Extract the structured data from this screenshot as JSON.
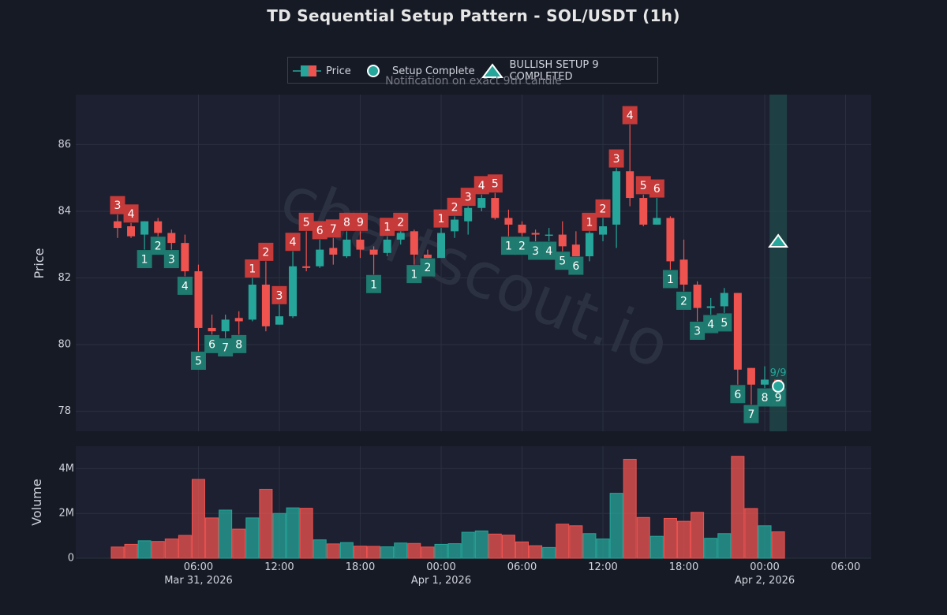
{
  "title": "TD Sequential Setup Pattern - SOL/USDT (1h)",
  "legend": {
    "price": "Price",
    "setup_complete": "Setup Complete",
    "bullish_setup": "BULLISH SETUP 9 COMPLETED",
    "note": "Notification on exact 9th candle"
  },
  "watermark": "chartscout.io",
  "colors": {
    "background": "#161a25",
    "panel": "#1c2030",
    "grid": "#2c3140",
    "up": "#26a69a",
    "down": "#ef5350",
    "label_up": "#1f7a70",
    "label_down": "#c73a3a",
    "highlight": "#1f4a4a",
    "text": "#d1d4dc"
  },
  "chart_data": {
    "type": "candlestick",
    "title": "TD Sequential Setup Pattern - SOL/USDT (1h)",
    "ylabel": "Price",
    "volume_label": "Volume",
    "ylim": [
      77.4,
      87.5
    ],
    "volume_ylim": [
      0,
      5000000
    ],
    "y_ticks": [
      78,
      80,
      82,
      84,
      86
    ],
    "volume_ticks": [
      {
        "value": 0,
        "label": "0"
      },
      {
        "value": 2000000,
        "label": "2M"
      },
      {
        "value": 4000000,
        "label": "4M"
      }
    ],
    "x_ticks": [
      {
        "hour": 6,
        "label": "06:00",
        "date": "Mar 31, 2026"
      },
      {
        "hour": 12,
        "label": "12:00",
        "date": ""
      },
      {
        "hour": 18,
        "label": "18:00",
        "date": ""
      },
      {
        "hour": 24,
        "label": "00:00",
        "date": "Apr 1, 2026"
      },
      {
        "hour": 30,
        "label": "06:00",
        "date": ""
      },
      {
        "hour": 36,
        "label": "12:00",
        "date": ""
      },
      {
        "hour": 42,
        "label": "18:00",
        "date": ""
      },
      {
        "hour": 48,
        "label": "00:00",
        "date": "Apr 2, 2026"
      },
      {
        "hour": 54,
        "label": "06:00",
        "date": ""
      }
    ],
    "start_hour": 0,
    "hour_range": [
      -3.1,
      55.9
    ],
    "candles": [
      {
        "o": 83.7,
        "h": 83.9,
        "l": 83.2,
        "c": 83.5,
        "v": 500000,
        "count": "3",
        "color": "red"
      },
      {
        "o": 83.55,
        "h": 83.65,
        "l": 83.2,
        "c": 83.25,
        "v": 620000,
        "count": "4",
        "color": "red"
      },
      {
        "o": 83.3,
        "h": 83.7,
        "l": 82.85,
        "c": 83.7,
        "v": 780000,
        "count": "1",
        "color": "green"
      },
      {
        "o": 83.7,
        "h": 83.8,
        "l": 83.25,
        "c": 83.35,
        "v": 750000,
        "count": "2",
        "color": "green"
      },
      {
        "o": 83.35,
        "h": 83.45,
        "l": 82.85,
        "c": 83.05,
        "v": 860000,
        "count": "3",
        "color": "green"
      },
      {
        "o": 83.05,
        "h": 83.3,
        "l": 82.05,
        "c": 82.2,
        "v": 1020000,
        "count": "4",
        "color": "green"
      },
      {
        "o": 82.2,
        "h": 82.4,
        "l": 79.8,
        "c": 80.5,
        "v": 3520000,
        "count": "5",
        "color": "green"
      },
      {
        "o": 80.5,
        "h": 80.9,
        "l": 80.3,
        "c": 80.4,
        "v": 1800000,
        "count": "6",
        "color": "green"
      },
      {
        "o": 80.4,
        "h": 80.9,
        "l": 80.2,
        "c": 80.75,
        "v": 2150000,
        "count": "7",
        "color": "green"
      },
      {
        "o": 80.8,
        "h": 81.0,
        "l": 80.3,
        "c": 80.7,
        "v": 1300000,
        "count": "8",
        "color": "green"
      },
      {
        "o": 80.75,
        "h": 82.0,
        "l": 80.7,
        "c": 81.8,
        "v": 1800000,
        "count": "1",
        "color": "red"
      },
      {
        "o": 81.8,
        "h": 82.5,
        "l": 80.4,
        "c": 80.55,
        "v": 3080000,
        "count": "2",
        "color": "red"
      },
      {
        "o": 80.6,
        "h": 81.2,
        "l": 80.6,
        "c": 80.85,
        "v": 2000000,
        "count": "3",
        "color": "red"
      },
      {
        "o": 80.85,
        "h": 82.8,
        "l": 80.8,
        "c": 82.35,
        "v": 2250000,
        "count": "4",
        "color": "red"
      },
      {
        "o": 82.35,
        "h": 83.4,
        "l": 82.2,
        "c": 82.3,
        "v": 2230000,
        "count": "5",
        "color": "red"
      },
      {
        "o": 82.35,
        "h": 83.15,
        "l": 82.3,
        "c": 82.85,
        "v": 820000,
        "count": "6",
        "color": "red"
      },
      {
        "o": 82.9,
        "h": 83.2,
        "l": 82.4,
        "c": 82.7,
        "v": 640000,
        "count": "7",
        "color": "red"
      },
      {
        "o": 82.65,
        "h": 83.4,
        "l": 82.6,
        "c": 83.15,
        "v": 700000,
        "count": "8",
        "color": "red"
      },
      {
        "o": 83.15,
        "h": 83.4,
        "l": 82.6,
        "c": 82.85,
        "v": 540000,
        "count": "9",
        "color": "red"
      },
      {
        "o": 82.85,
        "h": 82.95,
        "l": 82.1,
        "c": 82.7,
        "v": 530000,
        "count": "1",
        "color": "green"
      },
      {
        "o": 82.75,
        "h": 83.25,
        "l": 82.65,
        "c": 83.15,
        "v": 510000,
        "count": "1",
        "color": "red"
      },
      {
        "o": 83.15,
        "h": 83.4,
        "l": 83.0,
        "c": 83.35,
        "v": 680000,
        "count": "2",
        "color": "red"
      },
      {
        "o": 83.4,
        "h": 83.45,
        "l": 82.4,
        "c": 82.7,
        "v": 660000,
        "count": "1",
        "color": "green"
      },
      {
        "o": 82.7,
        "h": 82.85,
        "l": 82.6,
        "c": 82.6,
        "v": 500000,
        "count": "2",
        "color": "green"
      },
      {
        "o": 82.6,
        "h": 83.5,
        "l": 82.6,
        "c": 83.35,
        "v": 620000,
        "count": "1",
        "color": "red"
      },
      {
        "o": 83.4,
        "h": 83.85,
        "l": 83.2,
        "c": 83.75,
        "v": 650000,
        "count": "2",
        "color": "red"
      },
      {
        "o": 83.7,
        "h": 84.15,
        "l": 83.3,
        "c": 84.1,
        "v": 1160000,
        "count": "3",
        "color": "red"
      },
      {
        "o": 84.1,
        "h": 84.5,
        "l": 84.0,
        "c": 84.4,
        "v": 1220000,
        "count": "4",
        "color": "red"
      },
      {
        "o": 84.4,
        "h": 84.55,
        "l": 83.75,
        "c": 83.8,
        "v": 1080000,
        "count": "5",
        "color": "red"
      },
      {
        "o": 83.8,
        "h": 84.05,
        "l": 83.25,
        "c": 83.6,
        "v": 1030000,
        "count": "1",
        "color": "green"
      },
      {
        "o": 83.6,
        "h": 83.7,
        "l": 83.25,
        "c": 83.35,
        "v": 730000,
        "count": "2",
        "color": "green"
      },
      {
        "o": 83.35,
        "h": 83.45,
        "l": 83.1,
        "c": 83.3,
        "v": 560000,
        "count": "3",
        "color": "green"
      },
      {
        "o": 83.3,
        "h": 83.5,
        "l": 83.1,
        "c": 83.3,
        "v": 480000,
        "count": "4",
        "color": "green"
      },
      {
        "o": 83.3,
        "h": 83.7,
        "l": 82.8,
        "c": 82.95,
        "v": 1520000,
        "count": "5",
        "color": "green"
      },
      {
        "o": 83.0,
        "h": 83.4,
        "l": 82.65,
        "c": 82.65,
        "v": 1450000,
        "count": "6",
        "color": "green"
      },
      {
        "o": 82.65,
        "h": 83.4,
        "l": 82.5,
        "c": 83.35,
        "v": 1100000,
        "count": "1",
        "color": "red"
      },
      {
        "o": 83.3,
        "h": 83.8,
        "l": 83.1,
        "c": 83.55,
        "v": 860000,
        "count": "2",
        "color": "red"
      },
      {
        "o": 83.6,
        "h": 85.3,
        "l": 82.9,
        "c": 85.2,
        "v": 2900000,
        "count": "3",
        "color": "red"
      },
      {
        "o": 85.2,
        "h": 86.6,
        "l": 84.15,
        "c": 84.4,
        "v": 4420000,
        "count": "4",
        "color": "red"
      },
      {
        "o": 84.4,
        "h": 84.5,
        "l": 83.55,
        "c": 83.6,
        "v": 1820000,
        "count": "5",
        "color": "red"
      },
      {
        "o": 83.6,
        "h": 84.4,
        "l": 83.6,
        "c": 83.8,
        "v": 980000,
        "count": "6",
        "color": "red"
      },
      {
        "o": 83.8,
        "h": 83.85,
        "l": 82.25,
        "c": 82.5,
        "v": 1780000,
        "count": "1",
        "color": "green"
      },
      {
        "o": 82.55,
        "h": 83.15,
        "l": 81.6,
        "c": 81.8,
        "v": 1650000,
        "count": "2",
        "color": "green"
      },
      {
        "o": 81.8,
        "h": 81.9,
        "l": 80.7,
        "c": 81.1,
        "v": 2050000,
        "count": "3",
        "color": "green"
      },
      {
        "o": 81.1,
        "h": 81.4,
        "l": 80.9,
        "c": 81.15,
        "v": 890000,
        "count": "4",
        "color": "green"
      },
      {
        "o": 81.15,
        "h": 81.7,
        "l": 80.95,
        "c": 81.55,
        "v": 1100000,
        "count": "5",
        "color": "green"
      },
      {
        "o": 81.55,
        "h": 81.55,
        "l": 78.8,
        "c": 79.25,
        "v": 4550000,
        "count": "6",
        "color": "green"
      },
      {
        "o": 79.3,
        "h": 79.3,
        "l": 78.2,
        "c": 78.8,
        "v": 2220000,
        "count": "7",
        "color": "green"
      },
      {
        "o": 78.8,
        "h": 79.35,
        "l": 78.7,
        "c": 78.95,
        "v": 1450000,
        "count": "8",
        "color": "green"
      },
      {
        "o": 78.95,
        "h": 78.95,
        "l": 78.7,
        "c": 78.75,
        "v": 1180000,
        "count": "9",
        "color": "green"
      }
    ],
    "completion": {
      "index": 49,
      "price": 78.75,
      "label": "9/9",
      "signal_price": 83.1
    }
  }
}
